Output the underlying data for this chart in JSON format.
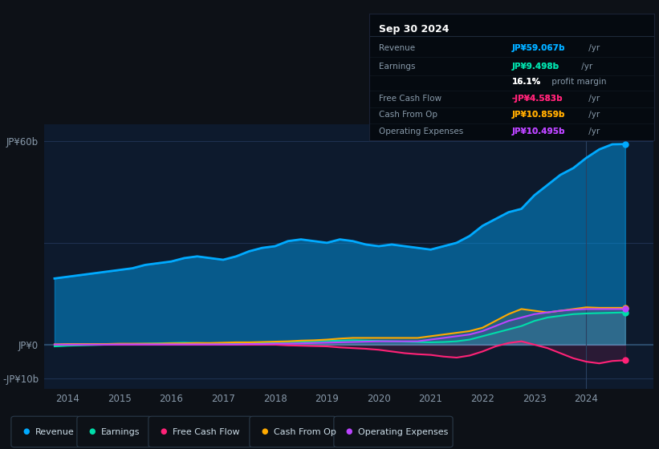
{
  "background_color": "#0d1117",
  "plot_bg_color": "#0d1a2d",
  "years": [
    2013.75,
    2014.0,
    2014.25,
    2014.5,
    2014.75,
    2015.0,
    2015.25,
    2015.5,
    2015.75,
    2016.0,
    2016.25,
    2016.5,
    2016.75,
    2017.0,
    2017.25,
    2017.5,
    2017.75,
    2018.0,
    2018.25,
    2018.5,
    2018.75,
    2019.0,
    2019.25,
    2019.5,
    2019.75,
    2020.0,
    2020.25,
    2020.5,
    2020.75,
    2021.0,
    2021.25,
    2021.5,
    2021.75,
    2022.0,
    2022.25,
    2022.5,
    2022.75,
    2023.0,
    2023.25,
    2023.5,
    2023.75,
    2024.0,
    2024.25,
    2024.5,
    2024.75
  ],
  "revenue": [
    19.5,
    20.0,
    20.5,
    21.0,
    21.5,
    22.0,
    22.5,
    23.5,
    24.0,
    24.5,
    25.5,
    26.0,
    25.5,
    25.0,
    26.0,
    27.5,
    28.5,
    29.0,
    30.5,
    31.0,
    30.5,
    30.0,
    31.0,
    30.5,
    29.5,
    29.0,
    29.5,
    29.0,
    28.5,
    28.0,
    29.0,
    30.0,
    32.0,
    35.0,
    37.0,
    39.0,
    40.0,
    44.0,
    47.0,
    50.0,
    52.0,
    55.0,
    57.5,
    59.0,
    59.067
  ],
  "earnings": [
    -0.5,
    -0.3,
    -0.2,
    -0.1,
    0.0,
    0.1,
    0.2,
    0.3,
    0.4,
    0.5,
    0.6,
    0.5,
    0.4,
    0.3,
    0.4,
    0.5,
    0.6,
    0.7,
    0.8,
    0.9,
    1.0,
    1.1,
    1.2,
    1.3,
    1.2,
    1.1,
    1.0,
    0.9,
    0.8,
    0.7,
    0.8,
    1.0,
    1.5,
    2.5,
    3.5,
    4.5,
    5.5,
    7.0,
    8.0,
    8.5,
    9.0,
    9.2,
    9.3,
    9.4,
    9.498
  ],
  "free_cash_flow": [
    0.0,
    0.0,
    0.0,
    0.0,
    0.0,
    0.0,
    0.0,
    0.0,
    0.0,
    0.0,
    0.0,
    0.0,
    0.0,
    0.0,
    0.0,
    0.0,
    0.0,
    0.0,
    -0.2,
    -0.3,
    -0.4,
    -0.5,
    -0.8,
    -1.0,
    -1.2,
    -1.5,
    -2.0,
    -2.5,
    -2.8,
    -3.0,
    -3.5,
    -3.8,
    -3.2,
    -2.0,
    -0.5,
    0.5,
    1.0,
    0.0,
    -1.0,
    -2.5,
    -4.0,
    -5.0,
    -5.5,
    -4.8,
    -4.583
  ],
  "cash_from_op": [
    0.1,
    0.2,
    0.2,
    0.2,
    0.2,
    0.3,
    0.3,
    0.3,
    0.3,
    0.4,
    0.4,
    0.5,
    0.5,
    0.6,
    0.7,
    0.7,
    0.8,
    0.9,
    1.0,
    1.2,
    1.3,
    1.5,
    1.8,
    2.0,
    2.0,
    2.0,
    2.0,
    2.0,
    2.0,
    2.5,
    3.0,
    3.5,
    4.0,
    5.0,
    7.0,
    9.0,
    10.5,
    10.0,
    9.5,
    10.0,
    10.5,
    11.0,
    10.859,
    10.859,
    10.859
  ],
  "operating_expenses": [
    0.05,
    0.05,
    0.05,
    0.05,
    0.05,
    0.1,
    0.1,
    0.1,
    0.1,
    0.1,
    0.1,
    0.1,
    0.1,
    0.1,
    0.1,
    0.2,
    0.2,
    0.3,
    0.3,
    0.4,
    0.5,
    0.6,
    0.7,
    0.8,
    0.9,
    1.0,
    1.0,
    1.0,
    1.0,
    1.5,
    2.0,
    2.5,
    3.0,
    4.0,
    5.5,
    7.0,
    8.0,
    9.0,
    9.5,
    10.0,
    10.3,
    10.495,
    10.495,
    10.495,
    10.495
  ],
  "revenue_color": "#00aaff",
  "earnings_color": "#00ddaa",
  "free_cash_flow_color": "#ff2277",
  "cash_from_op_color": "#ffaa00",
  "operating_expenses_color": "#bb44ff",
  "legend_items": [
    {
      "label": "Revenue",
      "color": "#00aaff"
    },
    {
      "label": "Earnings",
      "color": "#00ddaa"
    },
    {
      "label": "Free Cash Flow",
      "color": "#ff2277"
    },
    {
      "label": "Cash From Op",
      "color": "#ffaa00"
    },
    {
      "label": "Operating Expenses",
      "color": "#bb44ff"
    }
  ]
}
